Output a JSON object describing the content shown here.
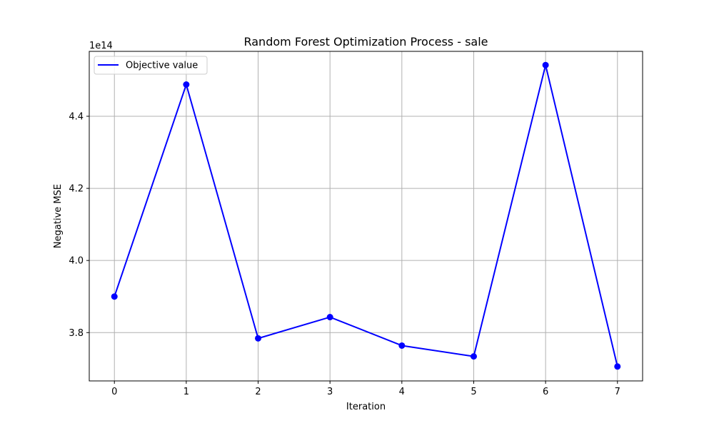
{
  "chart_data": {
    "type": "line",
    "title": "Random Forest Optimization Process - sale",
    "xlabel": "Iteration",
    "ylabel": "Negative MSE",
    "y_offset_label": "1e14",
    "x": [
      0,
      1,
      2,
      3,
      4,
      5,
      6,
      7
    ],
    "series": [
      {
        "name": "Objective value",
        "color": "#0000ff",
        "marker": "circle",
        "values": [
          390000000000000.0,
          448800000000000.0,
          378400000000000.0,
          384300000000000.0,
          376400000000000.0,
          373400000000000.0,
          454200000000000.0,
          370600000000000.0
        ]
      }
    ],
    "xticks": [
      0,
      1,
      2,
      3,
      4,
      5,
      6,
      7
    ],
    "xtick_labels": [
      "0",
      "1",
      "2",
      "3",
      "4",
      "5",
      "6",
      "7"
    ],
    "yticks": [
      380000000000000.0,
      400000000000000.0,
      420000000000000.0,
      440000000000000.0
    ],
    "ytick_labels": [
      "3.8",
      "4.0",
      "4.2",
      "4.4"
    ],
    "xlim": [
      -0.35,
      7.35
    ],
    "ylim": [
      366600000000000.0,
      458000000000000.0
    ],
    "grid": true,
    "legend_position": "upper-left"
  }
}
